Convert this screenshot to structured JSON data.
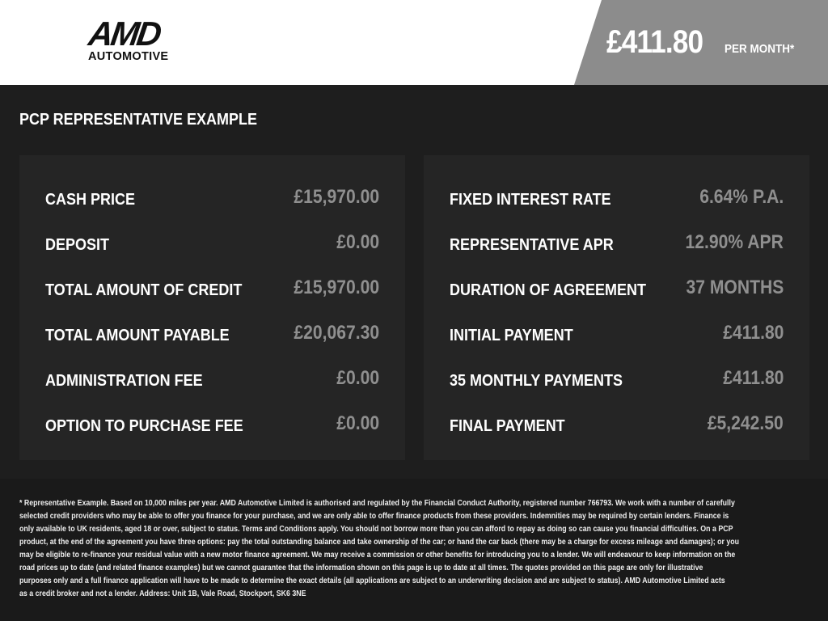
{
  "header": {
    "logo_text": "AMD",
    "logo_subtext": "AUTOMOTIVE",
    "price": "£411.80",
    "per_month": "PER MONTH*"
  },
  "title": "PCP REPRESENTATIVE EXAMPLE",
  "left_panel": [
    {
      "label": "CASH PRICE",
      "value": "£15,970.00"
    },
    {
      "label": "DEPOSIT",
      "value": "£0.00"
    },
    {
      "label": "TOTAL AMOUNT OF CREDIT",
      "value": "£15,970.00"
    },
    {
      "label": "TOTAL AMOUNT PAYABLE",
      "value": "£20,067.30"
    },
    {
      "label": "ADMINISTRATION FEE",
      "value": "£0.00"
    },
    {
      "label": "OPTION TO PURCHASE FEE",
      "value": "£0.00"
    }
  ],
  "right_panel": [
    {
      "label": "FIXED INTEREST RATE",
      "value": "6.64% P.A."
    },
    {
      "label": "REPRESENTATIVE APR",
      "value": "12.90% APR"
    },
    {
      "label": "DURATION OF AGREEMENT",
      "value": "37 MONTHS"
    },
    {
      "label": "INITIAL PAYMENT",
      "value": "£411.80"
    },
    {
      "label": "35 MONTHLY PAYMENTS",
      "value": "£411.80"
    },
    {
      "label": "FINAL PAYMENT",
      "value": "£5,242.50"
    }
  ],
  "footer_lines": [
    "* Representative Example. Based on 10,000 miles per year. AMD Automotive Limited is authorised and regulated by the Financial Conduct Authority, registered number 766793. We work with a number of carefully",
    "selected credit providers who may be able to offer you finance for your purchase, and we are only able to offer finance products from these providers. Indemnities may be required by certain lenders. Finance is",
    "only available to UK residents, aged 18 or over, subject to status. Terms and Conditions apply. You should not borrow more than you can afford to repay as doing so can cause you financial difficulties. On a PCP",
    "product, at the end of the agreement you have three options: pay the total outstanding balance and take ownership of the car; or hand the car back (there may be a charge for excess mileage and damages); or you",
    "may be eligible to re-finance your residual value with a new motor finance agreement. We may receive a commission or other benefits for introducing you to a lender. We will endeavour to keep information on the",
    "road prices up to date (and related finance examples) but we cannot guarantee that the information shown on this page is up to date at all times. The quotes provided on this page are only for illustrative",
    "purposes only and a full finance application will have to be made to determine the exact details (all applications are subject to an underwriting decision and are subject to status). AMD Automotive Limited acts",
    "as a credit broker and not a lender. Address: Unit 1B, Vale Road, Stockport, SK6 3NE"
  ]
}
